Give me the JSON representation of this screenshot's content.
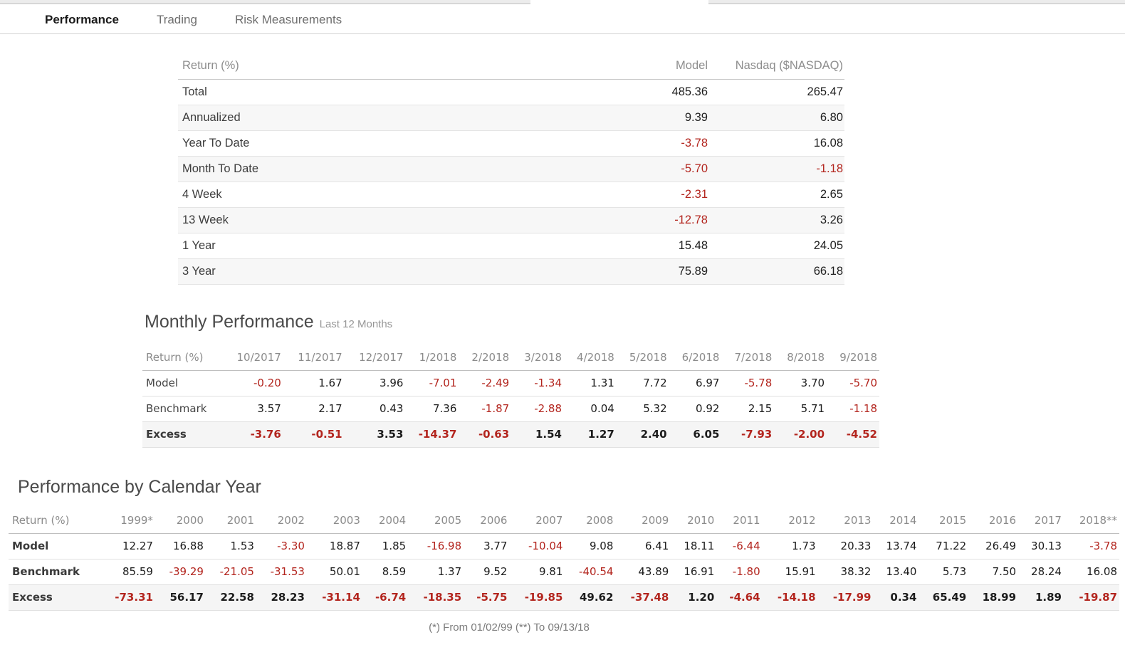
{
  "colors": {
    "negative": "#b3251e",
    "accent_dark": "#1a1a1a"
  },
  "tabs": [
    {
      "label": "Performance",
      "active": true
    },
    {
      "label": "Trading",
      "active": false
    },
    {
      "label": "Risk Measurements",
      "active": false
    }
  ],
  "returns_table": {
    "header_label": "Return (%)",
    "columns": [
      "Model",
      "Nasdaq ($NASDAQ)"
    ],
    "rows": [
      {
        "label": "Total",
        "values": [
          "485.36",
          "265.47"
        ]
      },
      {
        "label": "Annualized",
        "values": [
          "9.39",
          "6.80"
        ]
      },
      {
        "label": "Year To Date",
        "values": [
          "-3.78",
          "16.08"
        ]
      },
      {
        "label": "Month To Date",
        "values": [
          "-5.70",
          "-1.18"
        ]
      },
      {
        "label": "4 Week",
        "values": [
          "-2.31",
          "2.65"
        ]
      },
      {
        "label": "13 Week",
        "values": [
          "-12.78",
          "3.26"
        ]
      },
      {
        "label": "1 Year",
        "values": [
          "15.48",
          "24.05"
        ]
      },
      {
        "label": "3 Year",
        "values": [
          "75.89",
          "66.18"
        ]
      }
    ]
  },
  "monthly": {
    "title": "Monthly Performance",
    "subtitle": "Last 12 Months",
    "header_label": "Return (%)",
    "columns": [
      "10/2017",
      "11/2017",
      "12/2017",
      "1/2018",
      "2/2018",
      "3/2018",
      "4/2018",
      "5/2018",
      "6/2018",
      "7/2018",
      "8/2018",
      "9/2018"
    ],
    "rows": [
      {
        "label": "Model",
        "excess": false,
        "values": [
          "-0.20",
          "1.67",
          "3.96",
          "-7.01",
          "-2.49",
          "-1.34",
          "1.31",
          "7.72",
          "6.97",
          "-5.78",
          "3.70",
          "-5.70"
        ]
      },
      {
        "label": "Benchmark",
        "excess": false,
        "values": [
          "3.57",
          "2.17",
          "0.43",
          "7.36",
          "-1.87",
          "-2.88",
          "0.04",
          "5.32",
          "0.92",
          "2.15",
          "5.71",
          "-1.18"
        ]
      },
      {
        "label": "Excess",
        "excess": true,
        "values": [
          "-3.76",
          "-0.51",
          "3.53",
          "-14.37",
          "-0.63",
          "1.54",
          "1.27",
          "2.40",
          "6.05",
          "-7.93",
          "-2.00",
          "-4.52"
        ]
      }
    ]
  },
  "calendar": {
    "title": "Performance by Calendar Year",
    "header_label": "Return (%)",
    "columns": [
      "1999*",
      "2000",
      "2001",
      "2002",
      "2003",
      "2004",
      "2005",
      "2006",
      "2007",
      "2008",
      "2009",
      "2010",
      "2011",
      "2012",
      "2013",
      "2014",
      "2015",
      "2016",
      "2017",
      "2018**"
    ],
    "rows": [
      {
        "label": "Model",
        "excess": false,
        "values": [
          "12.27",
          "16.88",
          "1.53",
          "-3.30",
          "18.87",
          "1.85",
          "-16.98",
          "3.77",
          "-10.04",
          "9.08",
          "6.41",
          "18.11",
          "-6.44",
          "1.73",
          "20.33",
          "13.74",
          "71.22",
          "26.49",
          "30.13",
          "-3.78"
        ]
      },
      {
        "label": "Benchmark",
        "excess": false,
        "values": [
          "85.59",
          "-39.29",
          "-21.05",
          "-31.53",
          "50.01",
          "8.59",
          "1.37",
          "9.52",
          "9.81",
          "-40.54",
          "43.89",
          "16.91",
          "-1.80",
          "15.91",
          "38.32",
          "13.40",
          "5.73",
          "7.50",
          "28.24",
          "16.08"
        ]
      },
      {
        "label": "Excess",
        "excess": true,
        "values": [
          "-73.31",
          "56.17",
          "22.58",
          "28.23",
          "-31.14",
          "-6.74",
          "-18.35",
          "-5.75",
          "-19.85",
          "49.62",
          "-37.48",
          "1.20",
          "-4.64",
          "-14.18",
          "-17.99",
          "0.34",
          "65.49",
          "18.99",
          "1.89",
          "-19.87"
        ]
      }
    ]
  },
  "footnote": "(*) From 01/02/99  (**) To 09/13/18"
}
